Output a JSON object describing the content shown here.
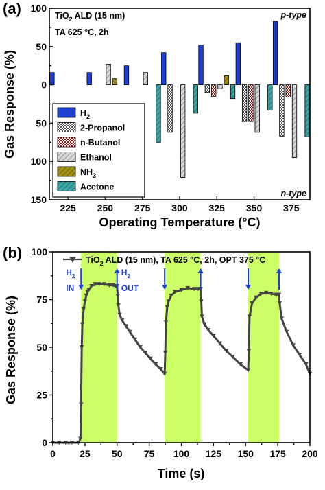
{
  "chart_data": [
    {
      "type": "bar",
      "panel_label": "(a)",
      "annotations": {
        "line1_pre": "TiO",
        "line1_sub": "2",
        "line1_post": " ALD (15 nm)",
        "line2": "TA 625 °C, 2h",
        "p_type": "p-type",
        "n_type": "n-type"
      },
      "xlabel": "Operating Temperature (°C)",
      "ylabel": "Gas Response (%)",
      "categories": [
        "225",
        "250",
        "275",
        "300",
        "325",
        "350",
        "375"
      ],
      "x_ticks": [
        "225",
        "250",
        "275",
        "300",
        "325",
        "350",
        "375"
      ],
      "y_ticks": [
        {
          "value": 100,
          "label": "100"
        },
        {
          "value": 50,
          "label": "50"
        },
        {
          "value": 0,
          "label": "0"
        },
        {
          "value": -50,
          "label": "50"
        },
        {
          "value": -100,
          "label": "100"
        },
        {
          "value": -150,
          "label": "150"
        }
      ],
      "ylim": [
        -150,
        100
      ],
      "legend_placement": "left",
      "series": [
        {
          "name": "H₂",
          "name_base": "H",
          "name_sub": "2",
          "color": "#1f3fd0",
          "pattern": "solid",
          "values": [
            16,
            16,
            25,
            42,
            52,
            55,
            83
          ]
        },
        {
          "name": "2-Propanol",
          "color": "#555555",
          "pattern": "checker",
          "values": [
            null,
            null,
            null,
            -62,
            -10,
            -48,
            -67
          ]
        },
        {
          "name": "n-Butanol",
          "color": "#9a1414",
          "pattern": "checker",
          "values": [
            null,
            null,
            null,
            null,
            -15,
            -48,
            -16
          ]
        },
        {
          "name": "Ethanol",
          "color": "#d8d8d8",
          "pattern": "hatch",
          "values": [
            null,
            27,
            16,
            -121,
            -5,
            -62,
            -95
          ]
        },
        {
          "name": "NH₃",
          "name_base": "NH",
          "name_sub": "3",
          "color": "#a09018",
          "pattern": "hatch",
          "values": [
            null,
            8,
            null,
            null,
            12,
            null,
            null
          ]
        },
        {
          "name": "Acetone",
          "color": "#3aa3a3",
          "pattern": "hatch",
          "values": [
            null,
            null,
            -75,
            -37,
            -18,
            -33,
            -68
          ]
        }
      ]
    },
    {
      "type": "line",
      "panel_label": "(b)",
      "legend": {
        "pre": "TiO",
        "sub": "2",
        "post": " ALD (15 nm), TA 625 °C, 2h, OPT 375 °C"
      },
      "xlabel": "Time (s)",
      "ylabel": "Gas Response (%)",
      "xlim": [
        0,
        200
      ],
      "ylim": [
        0,
        100
      ],
      "x_ticks": [
        0,
        25,
        50,
        75,
        100,
        125,
        150,
        175,
        200
      ],
      "y_ticks": [
        0,
        25,
        50,
        75,
        100
      ],
      "shaded_intervals": [
        [
          22,
          50
        ],
        [
          87,
          115
        ],
        [
          152,
          176
        ]
      ],
      "shade_color": "#ccff66",
      "arrows": [
        {
          "x": 22,
          "direction": "down",
          "label": "H",
          "label_sub": "2",
          "label2": "IN"
        },
        {
          "x": 50,
          "direction": "up",
          "label": "H",
          "label_sub": "2",
          "label2": "OUT"
        },
        {
          "x": 87,
          "direction": "down"
        },
        {
          "x": 115,
          "direction": "up"
        },
        {
          "x": 152,
          "direction": "down"
        },
        {
          "x": 176,
          "direction": "up"
        }
      ],
      "series": [
        {
          "name": "TiO₂ ALD (15 nm), TA 625 °C, 2h, OPT 375 °C",
          "color": "#444444",
          "marker": "triangle-down",
          "x": [
            0,
            5,
            10,
            15,
            20,
            21.5,
            22,
            22.5,
            23,
            24,
            25,
            26,
            27,
            28,
            30,
            33,
            36,
            40,
            44,
            47,
            49,
            50,
            50.5,
            51,
            52,
            54,
            57,
            60,
            64,
            68,
            72,
            76,
            80,
            84,
            87,
            87.5,
            88,
            89,
            90,
            92,
            95,
            100,
            105,
            110,
            113,
            115,
            115.5,
            116,
            118,
            121,
            125,
            130,
            135,
            140,
            146,
            152,
            152.5,
            153,
            155,
            158,
            162,
            166,
            170,
            174,
            176,
            176.5,
            178,
            182,
            187,
            192,
            197,
            200
          ],
          "y": [
            0,
            0,
            0,
            0,
            0,
            2,
            20,
            50,
            62,
            70,
            74,
            77,
            79,
            80,
            82,
            83,
            83,
            83,
            82.5,
            82.5,
            82,
            82,
            77,
            72,
            67,
            64,
            61,
            58,
            54,
            50,
            47,
            44,
            41,
            38.5,
            36,
            47,
            63,
            71,
            74,
            77,
            79,
            80,
            81,
            80.5,
            80.5,
            80.5,
            74,
            66,
            62,
            59,
            56,
            52,
            48,
            45,
            41,
            38,
            48,
            66,
            73,
            76,
            78,
            78.5,
            78,
            77.5,
            77.5,
            73,
            65,
            58,
            51,
            46,
            41,
            36
          ]
        }
      ]
    }
  ]
}
